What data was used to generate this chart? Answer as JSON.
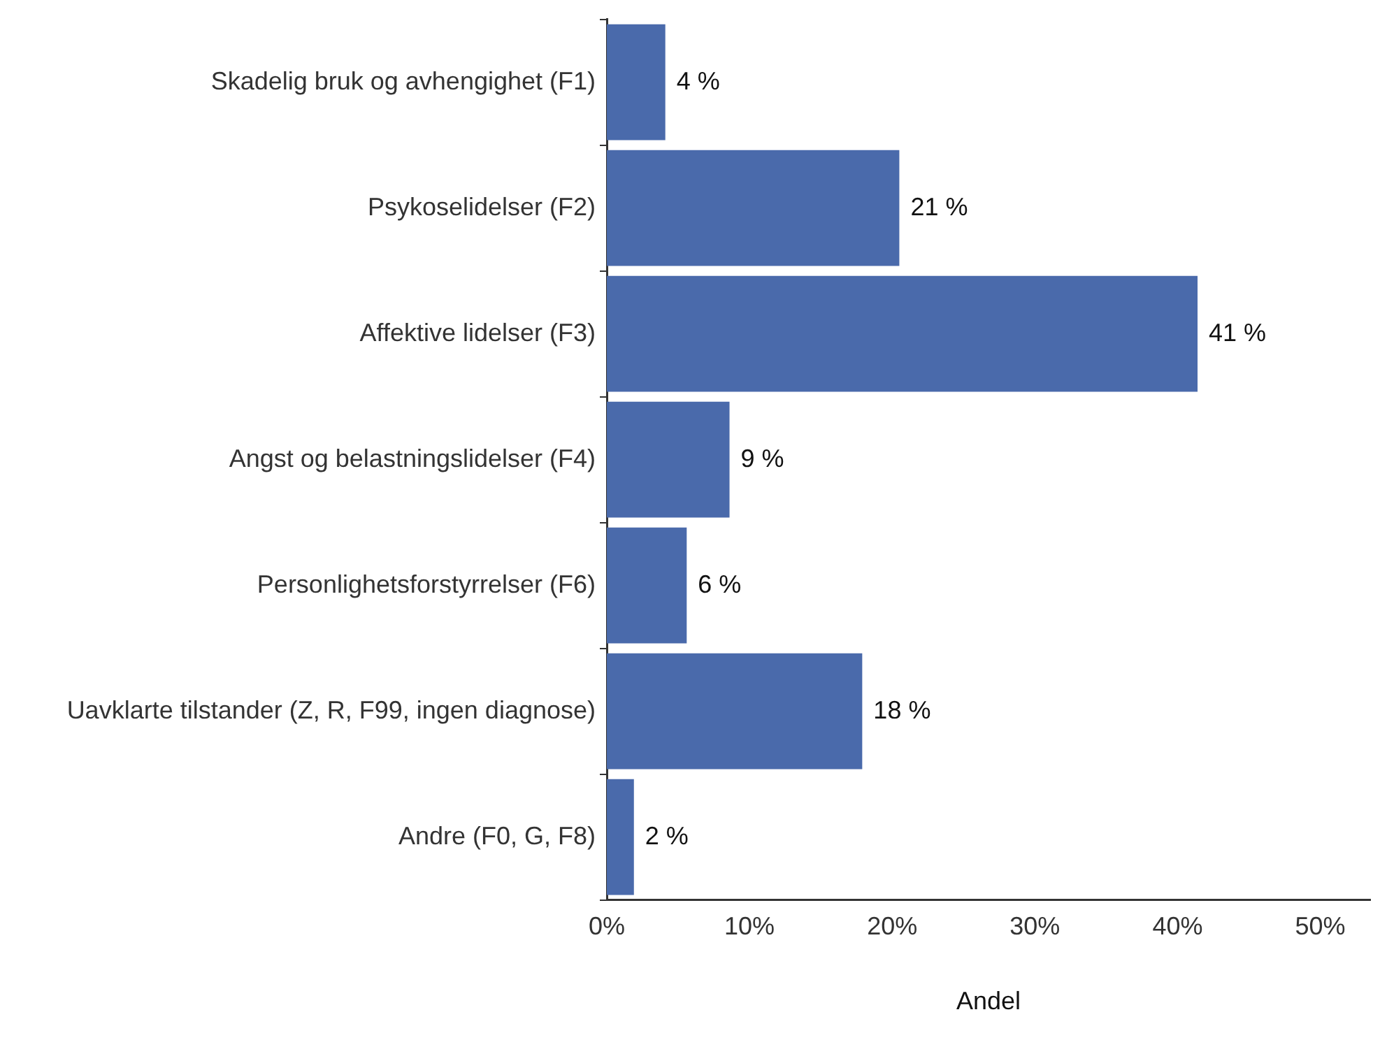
{
  "chart_data": {
    "type": "bar",
    "orientation": "horizontal",
    "xlabel": "Andel",
    "categories": [
      "Skadelig bruk og avhengighet (F1)",
      "Psykoselidelser (F2)",
      "Affektive lidelser (F3)",
      "Angst og belastningslidelser (F4)",
      "Personlighetsforstyrrelser (F6)",
      "Uavklarte tilstander (Z, R, F99, ingen diagnose)",
      "Andre (F0, G, F8)"
    ],
    "values": [
      4.1,
      20.5,
      41.4,
      8.6,
      5.6,
      17.9,
      1.9
    ],
    "value_labels": [
      "4 %",
      "21 %",
      "41 %",
      "9 %",
      "6 %",
      "18 %",
      "2 %"
    ],
    "color": "#4a6aab",
    "xlim": [
      0,
      53.5
    ],
    "xticks": [
      {
        "value": 0,
        "label": "0%"
      },
      {
        "value": 10,
        "label": "10%"
      },
      {
        "value": 20,
        "label": "20%"
      },
      {
        "value": 30,
        "label": "30%"
      },
      {
        "value": 40,
        "label": "40%"
      },
      {
        "value": 50,
        "label": "50%"
      }
    ],
    "grid": false,
    "legend": false
  }
}
